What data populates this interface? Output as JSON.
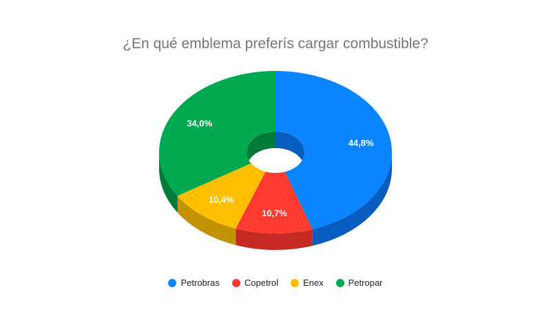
{
  "chart_data": {
    "type": "pie",
    "title": "¿En qué emblema preferís cargar combustible?",
    "style": "3d-donut",
    "legend_position": "bottom",
    "slices": [
      {
        "label": "Petrobras",
        "value": 44.8,
        "display": "44,8%",
        "color": "#0a84ff",
        "side_color": "#075cc0"
      },
      {
        "label": "Copetrol",
        "value": 10.7,
        "display": "10,7%",
        "color": "#ff3b30",
        "side_color": "#c62a22"
      },
      {
        "label": "Enex",
        "value": 10.4,
        "display": "10,4%",
        "color": "#ffbf00",
        "side_color": "#c29200"
      },
      {
        "label": "Petropar",
        "value": 34.0,
        "display": "34,0%",
        "color": "#00a84f",
        "side_color": "#007a39"
      }
    ]
  }
}
